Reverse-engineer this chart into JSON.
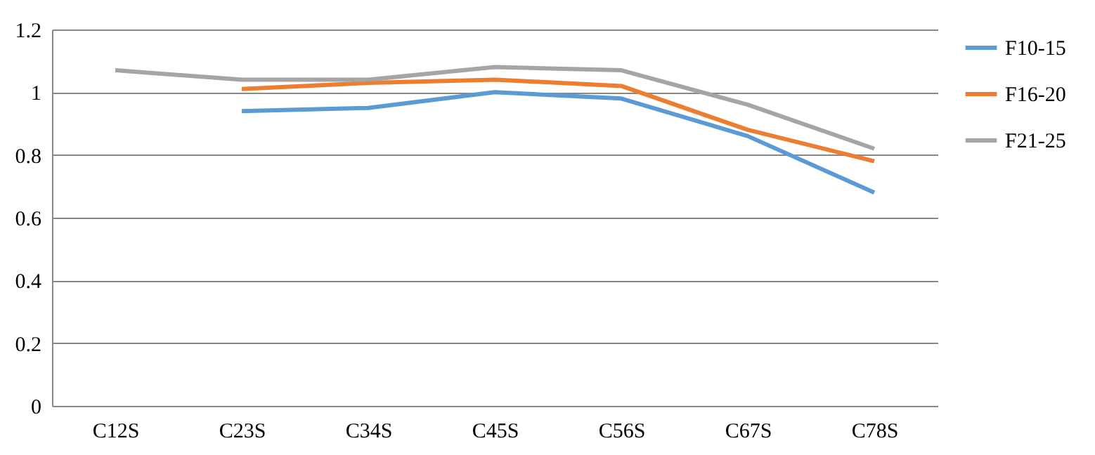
{
  "chart_data": {
    "type": "line",
    "categories": [
      "C12S",
      "C23S",
      "C34S",
      "C45S",
      "C56S",
      "C67S",
      "C78S"
    ],
    "series": [
      {
        "name": "F10-15",
        "color": "#5b9bd5",
        "values": [
          null,
          0.94,
          0.95,
          1.0,
          0.98,
          0.86,
          0.68
        ]
      },
      {
        "name": "F16-20",
        "color": "#ed7d31",
        "values": [
          null,
          1.01,
          1.03,
          1.04,
          1.02,
          0.88,
          0.78
        ]
      },
      {
        "name": "F21-25",
        "color": "#a5a5a5",
        "values": [
          1.07,
          1.04,
          1.04,
          1.08,
          1.07,
          0.96,
          0.82
        ]
      }
    ],
    "ylim": [
      0,
      1.2
    ],
    "yticks": [
      0,
      0.2,
      0.4,
      0.6,
      0.8,
      1,
      1.2
    ],
    "grid": "y",
    "legend": "right",
    "marker": "none",
    "line_style": "solid"
  }
}
